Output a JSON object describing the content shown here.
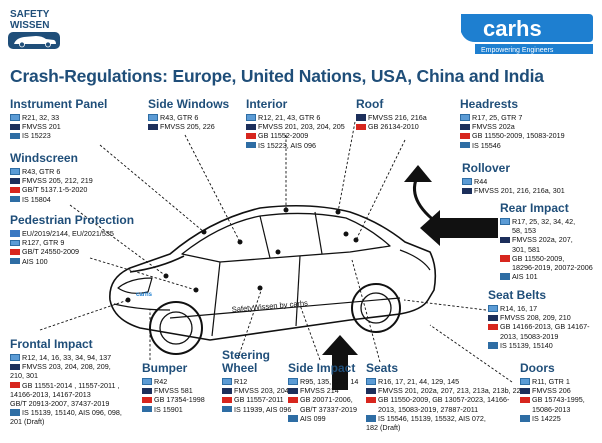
{
  "colors": {
    "heading": "#1f4e79",
    "eu": "#3a78c2",
    "un": "#5b9bd5",
    "us": "#1c2f5b",
    "cn": "#d7261e",
    "in": "#2e6da4",
    "accent": "#1e7fd0"
  },
  "logos": {
    "safety": "SAFETY",
    "wissen": "WISSEN",
    "carhs": "carhs",
    "carhs_tag": "Empowering Engineers",
    "car_text": "SafetyWissen by carhs"
  },
  "title": "Crash-Regulations: Europe, United Nations, USA, China and India",
  "sections": {
    "instrument_panel": {
      "heading": "Instrument Panel",
      "lines": [
        {
          "flag": "un",
          "text": "R21, 32, 33"
        },
        {
          "flag": "us",
          "text": "FMVSS 201"
        },
        {
          "flag": "in",
          "text": "IS 15223"
        }
      ]
    },
    "side_windows": {
      "heading": "Side Windows",
      "lines": [
        {
          "flag": "un",
          "text": "R43, GTR 6"
        },
        {
          "flag": "us",
          "text": "FMVSS 205, 226"
        }
      ]
    },
    "interior": {
      "heading": "Interior",
      "lines": [
        {
          "flag": "un",
          "text": "R12, 21, 43, GTR 6"
        },
        {
          "flag": "us",
          "text": "FMVSS 201, 203, 204, 205"
        },
        {
          "flag": "cn",
          "text": "GB 11552-2009"
        },
        {
          "flag": "in",
          "text": "IS 15223, AIS 096"
        }
      ]
    },
    "roof": {
      "heading": "Roof",
      "lines": [
        {
          "flag": "us",
          "text": "FMVSS 216, 216a"
        },
        {
          "flag": "cn",
          "text": "GB 26134-2010"
        }
      ]
    },
    "headrests": {
      "heading": "Headrests",
      "lines": [
        {
          "flag": "un",
          "text": "R17, 25, GTR 7"
        },
        {
          "flag": "us",
          "text": "FMVSS 202a"
        },
        {
          "flag": "cn",
          "text": "GB 11550-2009, 15083-2019"
        },
        {
          "flag": "in",
          "text": "IS 15546"
        }
      ]
    },
    "windscreen": {
      "heading": "Windscreen",
      "lines": [
        {
          "flag": "un",
          "text": "R43, GTR 6"
        },
        {
          "flag": "us",
          "text": "FMVSS 205, 212, 219"
        },
        {
          "flag": "cn",
          "text": "GB/T 5137.1-5-2020"
        },
        {
          "flag": "in",
          "text": "IS 15804"
        }
      ]
    },
    "rollover": {
      "heading": "Rollover",
      "lines": [
        {
          "flag": "un",
          "text": "R44"
        },
        {
          "flag": "us",
          "text": "FMVSS 201, 216, 216a, 301"
        }
      ]
    },
    "rear_impact": {
      "heading": "Rear Impact",
      "lines": [
        {
          "flag": "un",
          "text": "R17, 25, 32, 34, 42,"
        },
        {
          "flag": "",
          "text": "58, 153"
        },
        {
          "flag": "us",
          "text": "FMVSS 202a, 207,"
        },
        {
          "flag": "",
          "text": "301, 581"
        },
        {
          "flag": "cn",
          "text": "GB 11550-2009,"
        },
        {
          "flag": "",
          "text": "18296-2019, 20072-2006"
        },
        {
          "flag": "in",
          "text": "AIS 101"
        }
      ]
    },
    "pedestrian": {
      "heading": "Pedestrian Protection",
      "lines": [
        {
          "flag": "eu",
          "text": "EU/2019/2144, EU/2021/535"
        },
        {
          "flag": "un",
          "text": "R127, GTR 9"
        },
        {
          "flag": "cn",
          "text": "GB/T 24550-2009"
        },
        {
          "flag": "in",
          "text": "AIS 100"
        }
      ]
    },
    "seat_belts": {
      "heading": "Seat Belts",
      "lines": [
        {
          "flag": "un",
          "text": "R14, 16, 17"
        },
        {
          "flag": "us",
          "text": "FMVSS 208, 209, 210"
        },
        {
          "flag": "cn",
          "text": "GB 14166-2013, GB 14167-"
        },
        {
          "flag": "",
          "text": "2013, 15083-2019"
        },
        {
          "flag": "in",
          "text": "IS 15139, 15140"
        }
      ]
    },
    "frontal": {
      "heading": "Frontal Impact",
      "lines": [
        {
          "flag": "un",
          "text": "R12, 14, 16, 33, 34, 94, 137"
        },
        {
          "flag": "us",
          "text": "FMVSS 203, 204, 208, 209,"
        },
        {
          "flag": "",
          "text": "210, 301"
        },
        {
          "flag": "cn",
          "text": "GB 11551-2014 , 11557-2011 ,"
        },
        {
          "flag": "",
          "text": "14166-2013, 14167-2013"
        },
        {
          "flag": "",
          "text": "GB/T 20913-2007, 37437-2019"
        },
        {
          "flag": "in",
          "text": "IS 15139, 15140, AIS 096, 098,"
        },
        {
          "flag": "",
          "text": "201 (Draft)"
        }
      ]
    },
    "bumper": {
      "heading": "Bumper",
      "lines": [
        {
          "flag": "un",
          "text": "R42"
        },
        {
          "flag": "us",
          "text": "FMVSS 581"
        },
        {
          "flag": "cn",
          "text": "GB 17354-1998"
        },
        {
          "flag": "in",
          "text": "IS 15901"
        }
      ]
    },
    "steering": {
      "heading": "Steering",
      "heading2": "Wheel",
      "lines": [
        {
          "flag": "un",
          "text": "R12"
        },
        {
          "flag": "us",
          "text": "FMVSS 203, 204"
        },
        {
          "flag": "cn",
          "text": "GB 11557-2011"
        },
        {
          "flag": "in",
          "text": "IS 11939, AIS 096"
        }
      ]
    },
    "side_impact": {
      "heading": "Side Impact",
      "lines": [
        {
          "flag": "un",
          "text": "R95, 135, GTR 14"
        },
        {
          "flag": "us",
          "text": "FMVSS 214"
        },
        {
          "flag": "cn",
          "text": "GB 20071-2006,"
        },
        {
          "flag": "",
          "text": "GB/T 37337-2019"
        },
        {
          "flag": "in",
          "text": "AIS 099"
        }
      ]
    },
    "seats": {
      "heading": "Seats",
      "lines": [
        {
          "flag": "un",
          "text": "R16, 17, 21, 44, 129, 145"
        },
        {
          "flag": "us",
          "text": "FMVSS 201, 202a, 207, 213, 213a, 213b, 225"
        },
        {
          "flag": "cn",
          "text": "GB 11550-2009, GB 13057-2023, 14166-"
        },
        {
          "flag": "",
          "text": "2013, 15083-2019, 27887-2011"
        },
        {
          "flag": "in",
          "text": "IS 15546, 15139, 15532, AIS 072,"
        },
        {
          "flag": "",
          "text": "182 (Draft)"
        }
      ]
    },
    "doors": {
      "heading": "Doors",
      "lines": [
        {
          "flag": "un",
          "text": "R11, GTR 1"
        },
        {
          "flag": "us",
          "text": "FMVSS 206"
        },
        {
          "flag": "cn",
          "text": "GB 15743-1995,"
        },
        {
          "flag": "",
          "text": "15086-2013"
        },
        {
          "flag": "in",
          "text": "IS 14225"
        }
      ]
    }
  }
}
